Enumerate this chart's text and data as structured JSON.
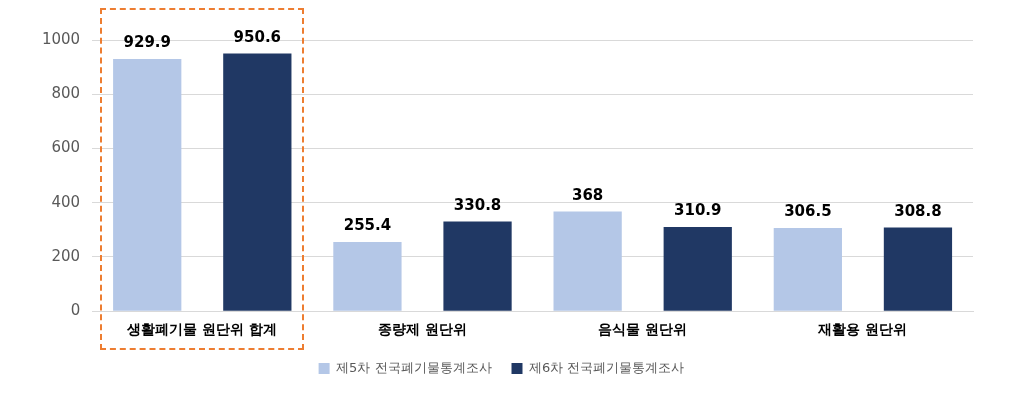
{
  "chart_data": {
    "type": "bar",
    "categories": [
      "생활폐기물 원단위 합계",
      "종량제 원단위",
      "음식물 원단위",
      "재활용 원단위"
    ],
    "series": [
      {
        "name": "제5차 전국폐기물통계조사",
        "color": "#b4c7e7",
        "values": [
          929.9,
          255.4,
          368,
          306.5
        ]
      },
      {
        "name": "제6차 전국폐기물통계조사",
        "color": "#203864",
        "values": [
          950.6,
          330.8,
          310.9,
          308.8
        ]
      }
    ],
    "ylim": [
      0,
      1000
    ],
    "yticks": [
      0,
      200,
      400,
      600,
      800,
      1000
    ],
    "grid": "y",
    "legend": "bottom",
    "data_labels": true
  }
}
